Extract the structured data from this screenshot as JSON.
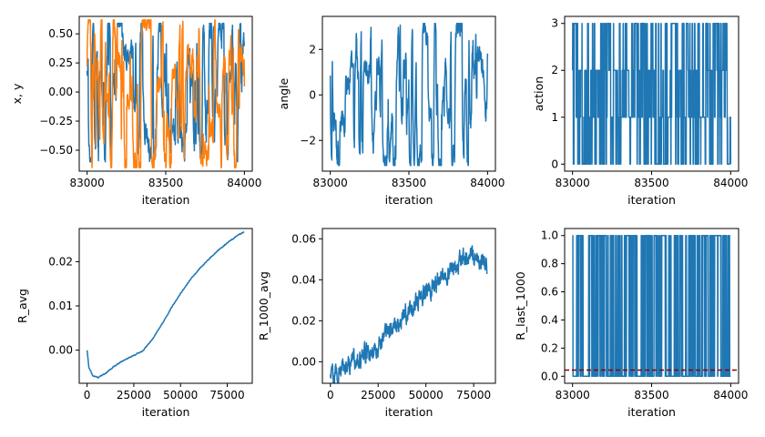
{
  "colors": {
    "blue": "#1f77b4",
    "orange": "#ff7f0e",
    "ref_line": "#8b0000"
  },
  "chart_data": [
    {
      "type": "line",
      "xlabel": "iteration",
      "ylabel": "x, y",
      "xlim": [
        82950,
        84050
      ],
      "ylim": [
        -0.68,
        0.65
      ],
      "xticks": [
        83000,
        83500,
        84000
      ],
      "yticks": [
        -0.5,
        -0.25,
        0.0,
        0.25,
        0.5
      ],
      "ytick_labels": [
        "−0.50",
        "−0.25",
        "0.00",
        "0.25",
        "0.50"
      ],
      "series": [
        {
          "color": "#1f77b4",
          "x_range": [
            83000,
            84000
          ],
          "pattern": "oscillating",
          "min": -0.6,
          "max": 0.59,
          "points": 900,
          "seed": 11
        },
        {
          "color": "#ff7f0e",
          "x_range": [
            83000,
            84000
          ],
          "pattern": "oscillating",
          "min": -0.65,
          "max": 0.62,
          "points": 900,
          "seed": 23
        }
      ]
    },
    {
      "type": "line",
      "xlabel": "iteration",
      "ylabel": "angle",
      "xlim": [
        82950,
        84050
      ],
      "ylim": [
        -3.35,
        3.45
      ],
      "xticks": [
        83000,
        83500,
        84000
      ],
      "yticks": [
        -2,
        0,
        2
      ],
      "ytick_labels": [
        "−2",
        "0",
        "2"
      ],
      "series": [
        {
          "color": "#1f77b4",
          "x_range": [
            83000,
            84000
          ],
          "pattern": "oscillating",
          "min": -3.1,
          "max": 3.14,
          "points": 900,
          "seed": 37
        }
      ]
    },
    {
      "type": "line",
      "xlabel": "iteration",
      "ylabel": "action",
      "xlim": [
        82950,
        84050
      ],
      "ylim": [
        -0.15,
        3.15
      ],
      "xticks": [
        83000,
        83500,
        84000
      ],
      "yticks": [
        0,
        1,
        2,
        3
      ],
      "ytick_labels": [
        "0",
        "1",
        "2",
        "3"
      ],
      "series": [
        {
          "color": "#1f77b4",
          "x_range": [
            83000,
            84000
          ],
          "pattern": "discrete",
          "levels": [
            0,
            1,
            2,
            3
          ],
          "points": 1000,
          "seed": 5
        }
      ]
    },
    {
      "type": "line",
      "xlabel": "iteration",
      "ylabel": "R_avg",
      "xlim": [
        -4200,
        88400
      ],
      "ylim": [
        -0.0075,
        0.0275
      ],
      "xticks": [
        0,
        25000,
        50000,
        75000
      ],
      "yticks": [
        0.0,
        0.01,
        0.02
      ],
      "ytick_labels": [
        "0.00",
        "0.01",
        "0.02"
      ],
      "series": [
        {
          "color": "#1f77b4",
          "pattern": "curve",
          "noise": 8e-05,
          "seed": 41,
          "x": [
            0,
            1000,
            3000,
            6000,
            10000,
            15000,
            20000,
            25000,
            30000,
            35000,
            40000,
            45000,
            50000,
            55000,
            60000,
            65000,
            70000,
            75000,
            80000,
            84000
          ],
          "values": [
            0.0,
            -0.004,
            -0.0058,
            -0.0062,
            -0.0052,
            -0.0035,
            -0.0022,
            -0.0012,
            -0.0001,
            0.0025,
            0.0058,
            0.0095,
            0.0128,
            0.0158,
            0.0183,
            0.0205,
            0.0225,
            0.0242,
            0.0258,
            0.0267
          ]
        }
      ]
    },
    {
      "type": "line",
      "xlabel": "iteration",
      "ylabel": "R_1000_avg",
      "xlim": [
        -4200,
        86400
      ],
      "ylim": [
        -0.0105,
        0.065
      ],
      "xticks": [
        0,
        25000,
        50000,
        75000
      ],
      "yticks": [
        0.0,
        0.02,
        0.04,
        0.06
      ],
      "ytick_labels": [
        "0.00",
        "0.02",
        "0.04",
        "0.06"
      ],
      "series": [
        {
          "color": "#1f77b4",
          "pattern": "curve",
          "noise": 0.0035,
          "seed": 59,
          "x": [
            0,
            5000,
            10000,
            15000,
            20000,
            25000,
            30000,
            35000,
            40000,
            45000,
            50000,
            55000,
            60000,
            65000,
            70000,
            75000,
            80000,
            82000
          ],
          "values": [
            -0.006,
            -0.005,
            0.0,
            0.002,
            0.004,
            0.008,
            0.016,
            0.018,
            0.024,
            0.03,
            0.034,
            0.038,
            0.043,
            0.048,
            0.05,
            0.052,
            0.05,
            0.045
          ]
        }
      ]
    },
    {
      "type": "line",
      "xlabel": "iteration",
      "ylabel": "R_last_1000",
      "xlim": [
        82950,
        84050
      ],
      "ylim": [
        -0.05,
        1.05
      ],
      "xticks": [
        83000,
        83500,
        84000
      ],
      "yticks": [
        0.0,
        0.2,
        0.4,
        0.6,
        0.8,
        1.0
      ],
      "ytick_labels": [
        "0.0",
        "0.2",
        "0.4",
        "0.6",
        "0.8",
        "1.0"
      ],
      "hline": {
        "y": 0.044,
        "color": "#8b0000",
        "style": "dashed"
      },
      "series": [
        {
          "color": "#1f77b4",
          "x_range": [
            83000,
            84000
          ],
          "pattern": "binary",
          "levels": [
            0,
            1
          ],
          "points": 1000,
          "seed": 73
        }
      ]
    }
  ]
}
